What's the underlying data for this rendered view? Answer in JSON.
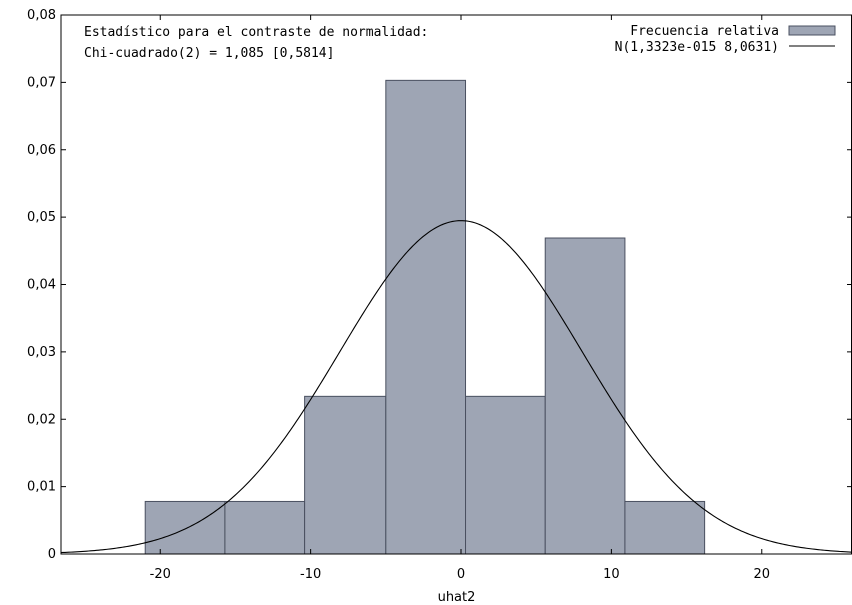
{
  "chart_data": {
    "type": "bar",
    "title": "",
    "xlabel": "uhat2",
    "ylabel": "",
    "xlim": [
      -26.6,
      26.0
    ],
    "ylim": [
      0,
      0.08
    ],
    "x_ticks": [
      -20,
      -10,
      0,
      10,
      20
    ],
    "x_tick_labels": [
      "-20",
      "-10",
      "0",
      "10",
      "20"
    ],
    "y_ticks": [
      0,
      0.01,
      0.02,
      0.03,
      0.04,
      0.05,
      0.06,
      0.07,
      0.08
    ],
    "y_tick_labels": [
      "0",
      "0,01",
      "0,02",
      "0,03",
      "0,04",
      "0,05",
      "0,06",
      "0,07",
      "0,08"
    ],
    "annotations": [
      "Estadístico para el contraste de normalidad:",
      "Chi-cuadrado(2) = 1,085 [0,5814]"
    ],
    "series": [
      {
        "name": "Frecuencia relativa",
        "kind": "histogram",
        "bins": [
          {
            "x0": -21.0,
            "x1": -15.7,
            "value": 0.0078
          },
          {
            "x0": -15.7,
            "x1": -10.4,
            "value": 0.0078
          },
          {
            "x0": -10.4,
            "x1": -5.0,
            "value": 0.0234
          },
          {
            "x0": -5.0,
            "x1": 0.3,
            "value": 0.0703
          },
          {
            "x0": 0.3,
            "x1": 5.6,
            "value": 0.0234
          },
          {
            "x0": 5.6,
            "x1": 10.9,
            "value": 0.0469
          },
          {
            "x0": 10.9,
            "x1": 16.2,
            "value": 0.0078
          }
        ]
      },
      {
        "name": "N(1,3323e-015 8,0631)",
        "kind": "normal_curve",
        "mean": 0,
        "sd": 8.0631
      }
    ],
    "legend_position": "top-right",
    "grid": false,
    "colors": {
      "bar_fill": "#9ea5b4",
      "bar_stroke": "#4a5060",
      "curve": "#000000",
      "axis": "#000000"
    }
  }
}
